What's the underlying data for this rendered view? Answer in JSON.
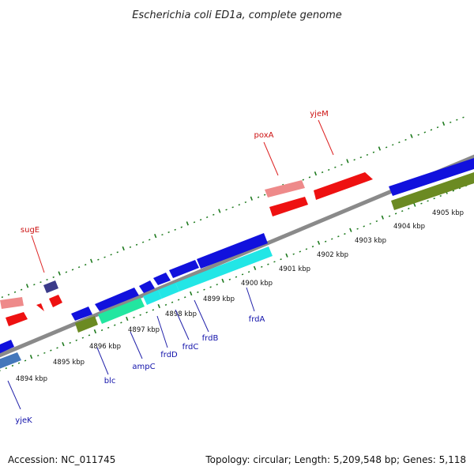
{
  "title": "Escherichia coli ED1a, complete genome",
  "footer": {
    "accession": "Accession: NC_011745",
    "topology": "Topology: circular; Length: 5,209,548 bp; Genes: 5,118"
  },
  "colors": {
    "backbone": "#8a8a8a",
    "tick": "#1e7a1e",
    "cds_forward": "#ee1111",
    "cds_forward_light": "#ee8a8a",
    "cds_reverse": "#1111dd",
    "cds_reverse_light": "#4477bb",
    "cds_cyan": "#22e6e6",
    "cds_green": "#22e6a0",
    "cds_olive": "#6b8a22",
    "cds_navy": "#3b3b8a",
    "label_forward": "#cc1111",
    "label_reverse": "#1111aa"
  },
  "scale_labels": [
    "4894 kbp",
    "4895 kbp",
    "4896 kbp",
    "4897 kbp",
    "4898 kbp",
    "4899 kbp",
    "4900 kbp",
    "4901 kbp",
    "4902 kbp",
    "4903 kbp",
    "4904 kbp",
    "4905 kbp"
  ],
  "gene_labels": {
    "forward": [
      "sugE",
      "poxA",
      "yjeM"
    ],
    "reverse": [
      "yjeK",
      "blc",
      "ampC",
      "frdD",
      "frdC",
      "frdB",
      "frdA"
    ]
  }
}
